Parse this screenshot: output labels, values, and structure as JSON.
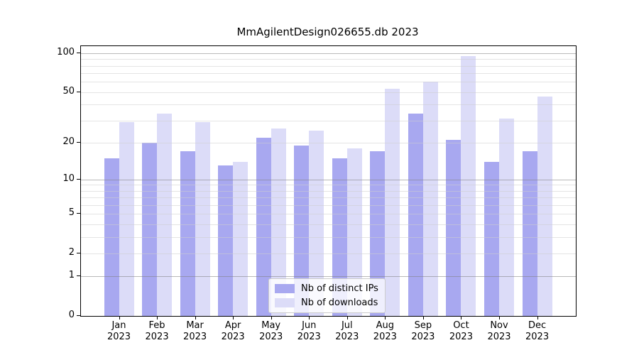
{
  "title": "MmAgilentDesign026655.db 2023",
  "chart_data": {
    "type": "bar",
    "title": "MmAgilentDesign026655.db 2023",
    "categories": [
      "Jan",
      "Feb",
      "Mar",
      "Apr",
      "May",
      "Jun",
      "Jul",
      "Aug",
      "Sep",
      "Oct",
      "Nov",
      "Dec"
    ],
    "category_year": "2023",
    "series": [
      {
        "name": "Nb of distinct IPs",
        "color": "#a8a8f0",
        "values": [
          15,
          20,
          17,
          13,
          22,
          19,
          15,
          17,
          34,
          21,
          14,
          17
        ]
      },
      {
        "name": "Nb of downloads",
        "color": "#dcdcf8",
        "values": [
          29,
          34,
          29,
          14,
          26,
          25,
          18,
          53,
          60,
          95,
          31,
          46
        ]
      }
    ],
    "xlabel": "",
    "ylabel": "",
    "yscale": "log1p",
    "yticks": [
      0,
      1,
      2,
      5,
      10,
      20,
      50,
      100
    ],
    "major_gridlines": [
      1,
      10,
      100
    ],
    "minor_gridlines": [
      2,
      3,
      4,
      5,
      6,
      7,
      8,
      9,
      20,
      30,
      40,
      50,
      60,
      70,
      80,
      90
    ],
    "ylim": [
      0,
      113
    ],
    "grid": true,
    "legend_position": "lower center",
    "colors": {
      "axis": "#000000",
      "text": "#000000",
      "major_grid": "#9a9a9a",
      "minor_grid": "#e2e2e2",
      "background": "#ffffff"
    }
  }
}
